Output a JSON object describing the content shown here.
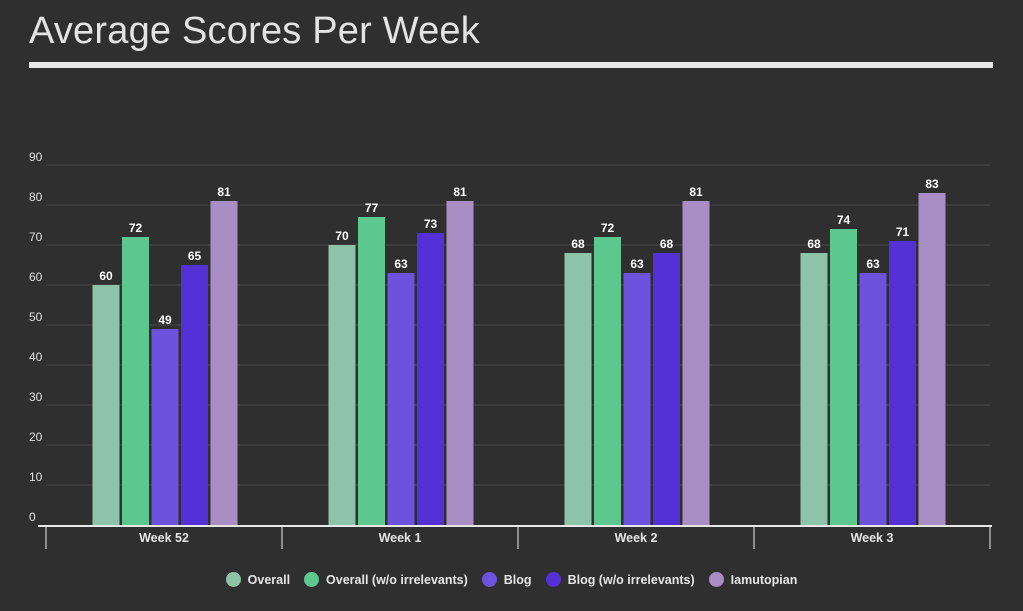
{
  "chart_data": {
    "type": "bar",
    "title": "Average Scores Per Week",
    "categories": [
      "Week 52",
      "Week 1",
      "Week 2",
      "Week 3"
    ],
    "series": [
      {
        "name": "Overall",
        "color": "#8dc4a9",
        "values": [
          60,
          70,
          68,
          68
        ]
      },
      {
        "name": "Overall (w/o irrelevants)",
        "color": "#5dc88e",
        "values": [
          72,
          77,
          72,
          74
        ]
      },
      {
        "name": "Blog",
        "color": "#6d52dd",
        "values": [
          49,
          63,
          63,
          63
        ]
      },
      {
        "name": "Blog (w/o irrelevants)",
        "color": "#5431d6",
        "values": [
          65,
          73,
          68,
          71
        ]
      },
      {
        "name": "Iamutopian",
        "color": "#a98ec6",
        "values": [
          81,
          81,
          81,
          83
        ]
      }
    ],
    "yticks": [
      0,
      10,
      20,
      30,
      40,
      50,
      60,
      70,
      80,
      90
    ],
    "ylim": [
      0,
      90
    ],
    "xlabel": "",
    "ylabel": "",
    "grid": true,
    "legend_position": "bottom-center"
  }
}
